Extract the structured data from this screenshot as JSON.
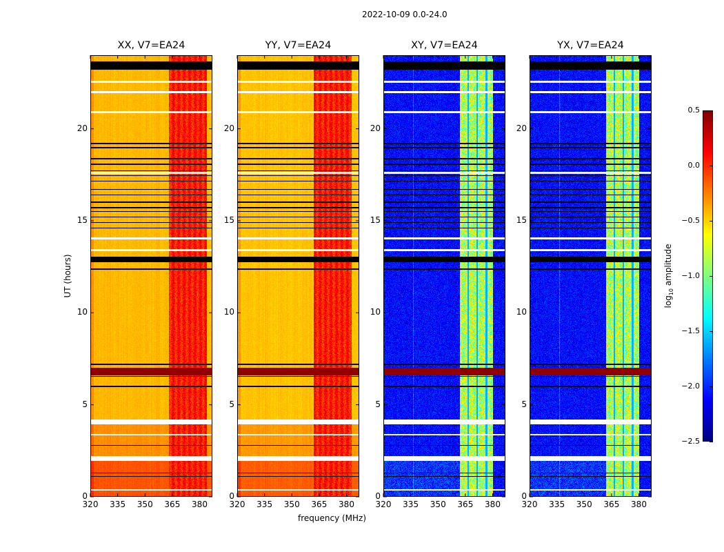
{
  "chart_data": {
    "type": "heatmap",
    "title": "2022-10-09 0.0-24.0",
    "xlabel": "frequency (MHz)",
    "ylabel": "UT (hours)",
    "xlim": [
      320,
      387
    ],
    "ylim": [
      0,
      24
    ],
    "xticks": [
      320,
      335,
      350,
      365,
      380
    ],
    "yticks": [
      0,
      5,
      10,
      15,
      20
    ],
    "colorbar": {
      "label_main": "log",
      "label_sub": "10",
      "label_rest": " amplitude",
      "range": [
        -2.5,
        0.5
      ],
      "ticks": [
        "0.5",
        "0.0",
        "−0.5",
        "−1.0",
        "−1.5",
        "−2.0",
        "−2.5"
      ],
      "tick_values": [
        0.5,
        0.0,
        -0.5,
        -1.0,
        -1.5,
        -2.0,
        -2.5
      ],
      "colormap": "jet"
    },
    "panels": [
      {
        "title": "XX, V7=EA24",
        "base": -0.42,
        "rfi_level": 0.05,
        "rfi_band": [
          363,
          384
        ],
        "gap_channels": []
      },
      {
        "title": "YY, V7=EA24",
        "base": -0.45,
        "rfi_level": 0.05,
        "rfi_band": [
          362,
          383
        ],
        "gap_channels": []
      },
      {
        "title": "XY, V7=EA24",
        "base": -2.1,
        "rfi_level": -0.85,
        "rfi_band": [
          362,
          380
        ],
        "gap_channels": [
          366.5,
          371.5,
          376.5
        ]
      },
      {
        "title": "YX, V7=EA24",
        "base": -2.1,
        "rfi_level": -0.85,
        "rfi_band": [
          362,
          380
        ],
        "gap_channels": [
          366.5,
          371.5,
          376.5
        ]
      }
    ],
    "flagged_hours_white": [
      [
        22.5,
        22.6
      ],
      [
        21.95,
        22.05
      ],
      [
        20.85,
        20.95
      ],
      [
        17.55,
        17.65
      ],
      [
        14.0,
        14.1
      ],
      [
        13.35,
        13.45
      ],
      [
        3.95,
        4.2
      ],
      [
        3.33,
        3.4
      ],
      [
        1.95,
        2.2
      ],
      [
        0.33,
        0.4
      ]
    ],
    "flagged_hours_black": [
      [
        23.2,
        23.65
      ],
      [
        19.15,
        19.22
      ],
      [
        18.95,
        19.02
      ],
      [
        18.35,
        18.42
      ],
      [
        18.05,
        18.12
      ],
      [
        17.7,
        17.75
      ],
      [
        17.42,
        17.48
      ],
      [
        17.12,
        17.18
      ],
      [
        16.68,
        16.74
      ],
      [
        16.38,
        16.44
      ],
      [
        15.98,
        16.04
      ],
      [
        15.68,
        15.74
      ],
      [
        15.48,
        15.54
      ],
      [
        15.18,
        15.24
      ],
      [
        14.88,
        14.94
      ],
      [
        14.58,
        14.64
      ],
      [
        12.75,
        13.05
      ],
      [
        12.35,
        12.42
      ],
      [
        7.17,
        7.23
      ],
      [
        6.52,
        6.58
      ],
      [
        5.97,
        6.03
      ],
      [
        2.77,
        2.83
      ],
      [
        1.27,
        1.33
      ],
      [
        1.07,
        1.13
      ]
    ],
    "strong_rfi_hours": [
      6.6,
      7.0
    ]
  }
}
